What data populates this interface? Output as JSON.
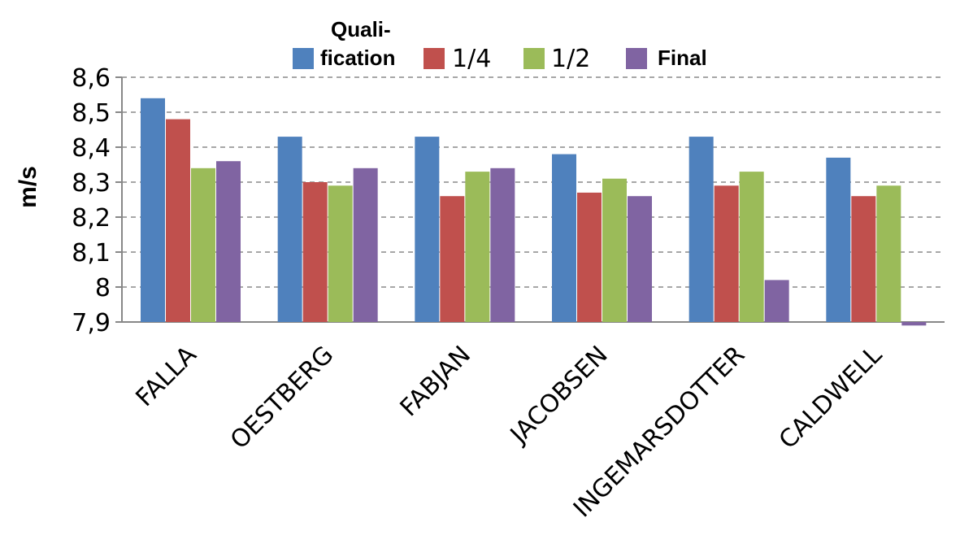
{
  "chart_data": {
    "type": "bar",
    "ylabel": "m/s",
    "ylim": [
      7.9,
      8.6
    ],
    "y_ticks": [
      "8,6",
      "8,5",
      "8,4",
      "8,3",
      "8,2",
      "8,1",
      "8",
      "7,9"
    ],
    "y_tick_values": [
      8.6,
      8.5,
      8.4,
      8.3,
      8.2,
      8.1,
      8.0,
      7.9
    ],
    "grid": true,
    "legend_position": "top",
    "categories": [
      "FALLA",
      "OESTBERG",
      "FABJAN",
      "JACOBSEN",
      "INGEMARSDOTTER",
      "CALDWELL"
    ],
    "series": [
      {
        "name_line1": "Quali-",
        "name_line2": "fication",
        "color": "#4F81BD",
        "values": [
          8.54,
          8.43,
          8.43,
          8.38,
          8.43,
          8.37
        ]
      },
      {
        "name": "1/4",
        "color": "#C0504D",
        "values": [
          8.48,
          8.3,
          8.26,
          8.27,
          8.29,
          8.26
        ]
      },
      {
        "name": "1/2",
        "color": "#9BBB59",
        "values": [
          8.34,
          8.29,
          8.33,
          8.31,
          8.33,
          8.29
        ]
      },
      {
        "name": "Final",
        "color": "#8064A2",
        "values": [
          8.36,
          8.34,
          8.34,
          8.26,
          8.02,
          7.89
        ]
      }
    ]
  }
}
